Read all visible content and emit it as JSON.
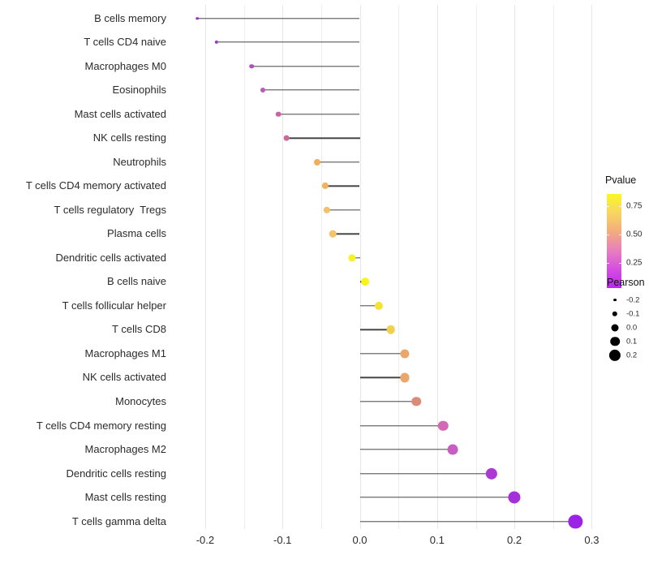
{
  "chart_data": {
    "type": "scatter",
    "variant": "lollipop",
    "orientation": "horizontal",
    "title": "",
    "xlabel": "",
    "ylabel": "",
    "xlim": [
      -0.225,
      0.315
    ],
    "grid": "vertical gridlines every 0.05, light gray, no axis lines",
    "x_ticks": [
      {
        "label": "-0.2",
        "value": -0.2
      },
      {
        "label": "-0.1",
        "value": -0.1
      },
      {
        "label": "0.0",
        "value": 0.0
      },
      {
        "label": "0.1",
        "value": 0.1
      },
      {
        "label": "0.2",
        "value": 0.2
      },
      {
        "label": "0.3",
        "value": 0.3
      }
    ],
    "minor_grid_values": [
      -0.2,
      -0.15,
      -0.1,
      -0.05,
      0,
      0.05,
      0.1,
      0.15,
      0.2,
      0.25,
      0.3
    ],
    "points": [
      {
        "label": "B cells memory",
        "pearson": -0.21,
        "color": "#992fc0"
      },
      {
        "label": "T cells CD4 naive",
        "pearson": -0.185,
        "color": "#a139c6"
      },
      {
        "label": "Macrophages M0",
        "pearson": -0.14,
        "color": "#b44cc4"
      },
      {
        "label": "Eosinophils",
        "pearson": -0.125,
        "color": "#bf58b8"
      },
      {
        "label": "Mast cells activated",
        "pearson": -0.105,
        "color": "#c9659f"
      },
      {
        "label": "NK cells resting",
        "pearson": -0.095,
        "color": "#ca6a9b"
      },
      {
        "label": "Neutrophils",
        "pearson": -0.055,
        "color": "#f1ad5e"
      },
      {
        "label": "T cells CD4 memory activated",
        "pearson": -0.045,
        "color": "#f3b25c"
      },
      {
        "label": "T cells regulatory  Tregs",
        "pearson": -0.043,
        "color": "#f4c168"
      },
      {
        "label": "Plasma cells",
        "pearson": -0.035,
        "color": "#f4c46b"
      },
      {
        "label": "Dendritic cells activated",
        "pearson": -0.01,
        "color": "#f7f228"
      },
      {
        "label": "B cells naive",
        "pearson": 0.007,
        "color": "#f8f51e"
      },
      {
        "label": "T cells follicular helper",
        "pearson": 0.025,
        "color": "#f6e138"
      },
      {
        "label": "T cells CD8",
        "pearson": 0.04,
        "color": "#f1d14c"
      },
      {
        "label": "Macrophages M1",
        "pearson": 0.058,
        "color": "#eba76b"
      },
      {
        "label": "NK cells activated",
        "pearson": 0.058,
        "color": "#eba76b"
      },
      {
        "label": "Monocytes",
        "pearson": 0.073,
        "color": "#dd8b79"
      },
      {
        "label": "T cells CD4 memory resting",
        "pearson": 0.108,
        "color": "#d169b4"
      },
      {
        "label": "Macrophages M2",
        "pearson": 0.12,
        "color": "#c75fc2"
      },
      {
        "label": "Dendritic cells resting",
        "pearson": 0.17,
        "color": "#ac39d4"
      },
      {
        "label": "Mast cells resting",
        "pearson": 0.2,
        "color": "#a52fdd"
      },
      {
        "label": "T cells gamma delta",
        "pearson": 0.279,
        "color": "#9a23e6"
      }
    ],
    "legend_pvalue": {
      "title": "Pvalue",
      "tick_labels": [
        "0.75",
        "0.50",
        "0.25"
      ],
      "gradient_stops": [
        "#fbf725",
        "#f7d65f",
        "#f3ac7e",
        "#e87fbe",
        "#d44fe0",
        "#bc26f0"
      ],
      "position": "right"
    },
    "legend_pearson": {
      "title": "Pearson",
      "items": [
        {
          "label": "-0.2",
          "value": -0.2
        },
        {
          "label": "-0.1",
          "value": -0.1
        },
        {
          "label": "0.0",
          "value": 0.0
        },
        {
          "label": "0.1",
          "value": 0.1
        },
        {
          "label": "0.2",
          "value": 0.2
        }
      ],
      "dot_color": "#000000"
    },
    "stem_color": "#454545",
    "zero_baseline": 0.0
  }
}
